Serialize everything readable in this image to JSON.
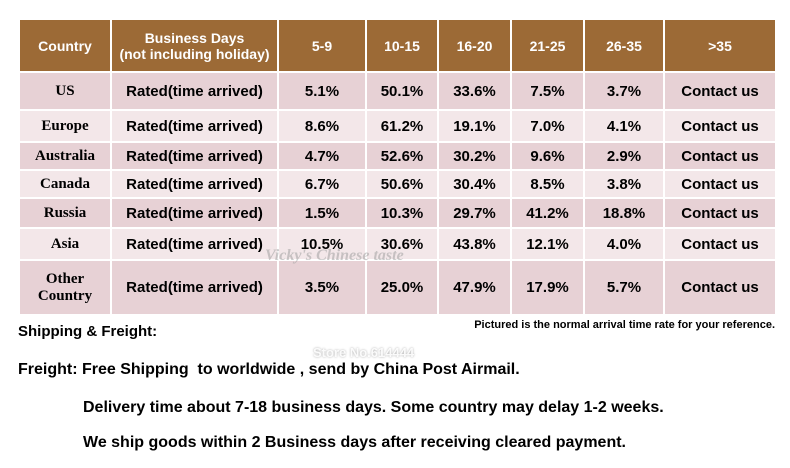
{
  "table": {
    "header": [
      "Country",
      {
        "title": "Business Days",
        "note": "(not including holiday)"
      },
      "5-9",
      "10-15",
      "16-20",
      "21-25",
      "26-35",
      ">35"
    ],
    "rows": [
      {
        "country": "US",
        "label": "Rated(time arrived)",
        "values": [
          "5.1%",
          "50.1%",
          "33.6%",
          "7.5%",
          "3.7%",
          "Contact us"
        ]
      },
      {
        "country": "Europe",
        "label": "Rated(time arrived)",
        "values": [
          "8.6%",
          "61.2%",
          "19.1%",
          "7.0%",
          "4.1%",
          "Contact us"
        ]
      },
      {
        "country": "Australia",
        "label": "Rated(time arrived)",
        "values": [
          "4.7%",
          "52.6%",
          "30.2%",
          "9.6%",
          "2.9%",
          "Contact us"
        ]
      },
      {
        "country": "Canada",
        "label": "Rated(time arrived)",
        "values": [
          "6.7%",
          "50.6%",
          "30.4%",
          "8.5%",
          "3.8%",
          "Contact us"
        ]
      },
      {
        "country": "Russia",
        "label": "Rated(time arrived)",
        "values": [
          "1.5%",
          "10.3%",
          "29.7%",
          "41.2%",
          "18.8%",
          "Contact us"
        ]
      },
      {
        "country": "Asia",
        "label": "Rated(time arrived)",
        "values": [
          "10.5%",
          "30.6%",
          "43.8%",
          "12.1%",
          "4.0%",
          "Contact us"
        ]
      },
      {
        "country": "Other Country",
        "label": "Rated(time arrived)",
        "values": [
          "3.5%",
          "25.0%",
          "47.9%",
          "17.9%",
          "5.7%",
          "Contact us"
        ]
      }
    ]
  },
  "notes": {
    "heading": "Shipping & Freight:",
    "reference": "Pictured is the normal arrival time rate for your reference.",
    "freight": "Freight: Free Shipping  to worldwide , send by China Post Airmail.",
    "delivery": "Delivery time about 7-18 business days. Some country may delay 1-2 weeks.",
    "dispatch": "We ship goods within 2 Business days after receiving cleared payment."
  },
  "watermark": {
    "brand": "Vicky's Chinese taste",
    "store": "Store No.614444"
  }
}
